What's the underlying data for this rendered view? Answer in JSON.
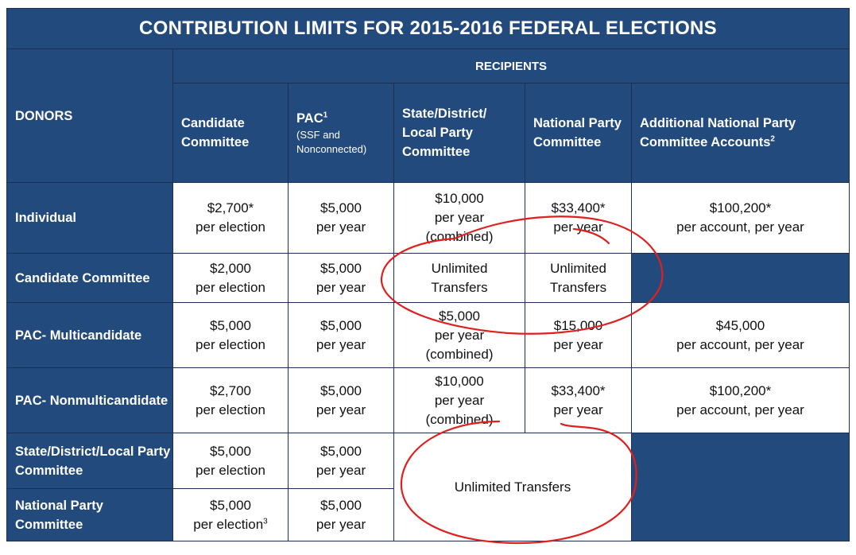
{
  "title": "CONTRIBUTION LIMITS FOR 2015-2016 FEDERAL ELECTIONS",
  "recipients_label": "RECIPIENTS",
  "donors_label": "DONORS",
  "columns": [
    {
      "label": "Candidate Committee"
    },
    {
      "label": "PAC",
      "sup": "1",
      "sub": "(SSF and Nonconnected)"
    },
    {
      "label": "State/District/ Local  Party Committee"
    },
    {
      "label": "National Party Committee"
    },
    {
      "label": "Additional National Party Committee Accounts",
      "sup": "2"
    }
  ],
  "rows": [
    {
      "donor": "Individual",
      "cells": [
        [
          "$2,700*",
          "per election"
        ],
        [
          "$5,000",
          "per year"
        ],
        [
          "$10,000",
          "per year",
          "(combined)"
        ],
        [
          "$33,400*",
          "per year"
        ],
        [
          "$100,200*",
          "per account, per year"
        ]
      ]
    },
    {
      "donor": "Candidate Committee",
      "cells": [
        [
          "$2,000",
          "per election"
        ],
        [
          "$5,000",
          "per year"
        ],
        [
          "Unlimited",
          "Transfers"
        ],
        [
          "Unlimited",
          "Transfers"
        ]
      ]
    },
    {
      "donor": "PAC- Multicandidate",
      "cells": [
        [
          "$5,000",
          "per election"
        ],
        [
          "$5,000",
          "per year"
        ],
        [
          "$5,000",
          "per year",
          "(combined)"
        ],
        [
          "$15,000",
          "per year"
        ],
        [
          "$45,000",
          "per account, per year"
        ]
      ]
    },
    {
      "donor": "PAC- Nonmulticandidate",
      "cells": [
        [
          "$2,700",
          "per election"
        ],
        [
          "$5,000",
          "per year"
        ],
        [
          "$10,000",
          "per year",
          "(combined)"
        ],
        [
          "$33,400*",
          "per year"
        ],
        [
          "$100,200*",
          "per account, per year"
        ]
      ]
    },
    {
      "donor": "State/District/Local Party Committee",
      "cells": [
        [
          "$5,000",
          "per election"
        ],
        [
          "$5,000",
          "per year"
        ]
      ]
    },
    {
      "donor": "National Party Committee",
      "cells": [
        [
          "$5,000",
          "per election"
        ],
        [
          "$5,000",
          "per year"
        ]
      ],
      "footnote_sup": "3"
    }
  ],
  "party_transfers": "Unlimited Transfers",
  "colors": {
    "header_bg": "#234a7d",
    "annotation": "#e0201f"
  }
}
